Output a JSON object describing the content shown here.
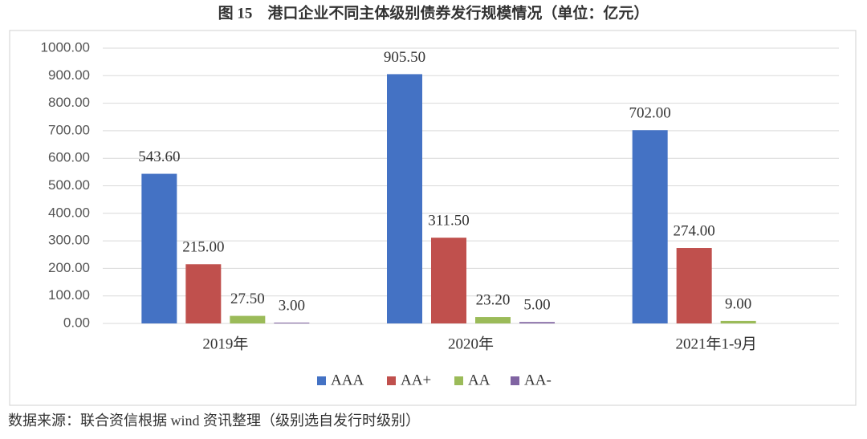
{
  "chart_data": {
    "type": "bar",
    "title": "图 15　港口企业不同主体级别债券发行规模情况（单位：亿元）",
    "source": "数据来源：联合资信根据 wind 资讯整理（级别选自发行时级别）",
    "categories": [
      "2019年",
      "2020年",
      "2021年1-9月"
    ],
    "series": [
      {
        "name": "AAA",
        "color": "#4472c4",
        "values": [
          543.6,
          905.5,
          702
        ],
        "value_labels": [
          "543.60",
          "905.50",
          "702.00"
        ]
      },
      {
        "name": "AA+",
        "color": "#c0504d",
        "values": [
          215,
          311.5,
          274
        ],
        "value_labels": [
          "215.00",
          "311.50",
          "274.00"
        ]
      },
      {
        "name": "AA",
        "color": "#9bbb59",
        "values": [
          27.5,
          23.2,
          9
        ],
        "value_labels": [
          "27.50",
          "23.20",
          "9.00"
        ]
      },
      {
        "name": "AA-",
        "color": "#8064a2",
        "values": [
          3,
          5,
          null
        ],
        "value_labels": [
          "3.00",
          "5.00",
          null
        ]
      }
    ],
    "ylim": [
      0,
      1000
    ],
    "yticks": [
      {
        "value": 0,
        "label": "0.00"
      },
      {
        "value": 100,
        "label": "100.00"
      },
      {
        "value": 200,
        "label": "200.00"
      },
      {
        "value": 300,
        "label": "300.00"
      },
      {
        "value": 400,
        "label": "400.00"
      },
      {
        "value": 500,
        "label": "500.00"
      },
      {
        "value": 600,
        "label": "600.00"
      },
      {
        "value": 700,
        "label": "700.00"
      },
      {
        "value": 800,
        "label": "800.00"
      },
      {
        "value": 900,
        "label": "900.00"
      },
      {
        "value": 1000,
        "label": "1000.00"
      }
    ],
    "grid": true,
    "legend": "bottom"
  }
}
